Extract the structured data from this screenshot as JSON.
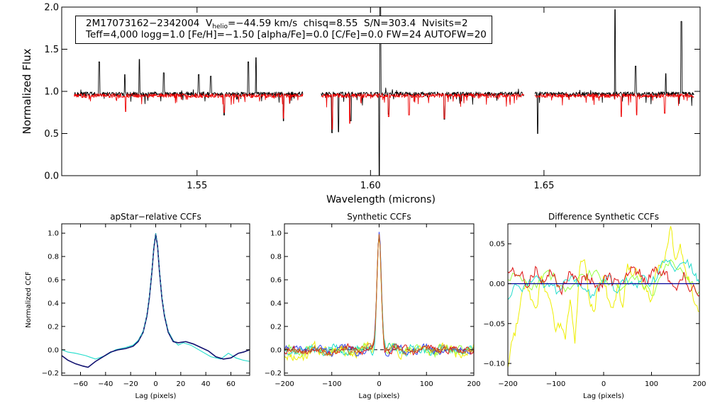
{
  "header": {
    "object_id": "2M17073162−2342004",
    "vhelio_label_main": "V",
    "vhelio_label_sub": "helio",
    "vhelio_value": "=−44.59 km/s",
    "chisq": "chisq=8.55",
    "snr": "S/N=303.4",
    "nvisits": "Nvisits=2",
    "params_line": "Teff=4,000 logg=1.0 [Fe/H]=−1.50 [alpha/Fe]=0.0 [C/Fe]=0.0 FW=24 AUTOFW=20"
  },
  "colors": {
    "observed": "#000000",
    "model": "#ee0000",
    "ccf_cyan": "#22ddcc",
    "ccf_navy": "#101070",
    "ccf_dash": "#3399aa",
    "ccf_yellow": "#eeee00",
    "ccf_green": "#99ff44",
    "ccf_red": "#dd1111",
    "ccf_orange": "#cc7722",
    "ccf_blue": "#3344ee",
    "zero_line": "#000099"
  },
  "chart_data": [
    {
      "id": "spectrum",
      "type": "line",
      "title": "",
      "xlabel": "Wavelength (microns)",
      "ylabel": "Normalized Flux",
      "xlim": [
        1.511,
        1.695
      ],
      "ylim": [
        0.0,
        2.0
      ],
      "xticks": [
        {
          "v": 1.55,
          "label": "1.55"
        },
        {
          "v": 1.6,
          "label": "1.60"
        },
        {
          "v": 1.65,
          "label": "1.65"
        }
      ],
      "yticks": [
        {
          "v": 0.0,
          "label": "0.0"
        },
        {
          "v": 0.5,
          "label": "0.5"
        },
        {
          "v": 1.0,
          "label": "1.0"
        },
        {
          "v": 1.5,
          "label": "1.5"
        },
        {
          "v": 2.0,
          "label": "2.0"
        }
      ],
      "chip_ranges": [
        [
          1.5146,
          1.5805
        ],
        [
          1.5858,
          1.6442
        ],
        [
          1.6474,
          1.6932
        ]
      ],
      "series": [
        {
          "name": "observed spectrum",
          "color_key": "observed",
          "continuum": 0.97,
          "features": [
            [
              1.5218,
              1.35
            ],
            [
              1.5292,
              1.2
            ],
            [
              1.5334,
              1.38
            ],
            [
              1.5404,
              1.22
            ],
            [
              1.5505,
              1.2
            ],
            [
              1.554,
              1.18
            ],
            [
              1.5648,
              1.35
            ],
            [
              1.567,
              1.4
            ],
            [
              1.5578,
              0.72
            ],
            [
              1.5749,
              0.65
            ],
            [
              1.5889,
              0.51
            ],
            [
              1.5908,
              0.52
            ],
            [
              1.5943,
              0.65
            ],
            [
              1.6026,
              0.0
            ],
            [
              1.6028,
              2.0
            ],
            [
              1.6052,
              0.73
            ],
            [
              1.6213,
              0.67
            ],
            [
              1.6482,
              0.5
            ],
            [
              1.6705,
              1.97
            ],
            [
              1.6764,
              1.3
            ],
            [
              1.6851,
              1.21
            ],
            [
              1.6896,
              1.83
            ]
          ]
        },
        {
          "name": "model fit",
          "color_key": "model",
          "continuum": 0.95,
          "features": [
            [
              1.5294,
              0.76
            ],
            [
              1.5578,
              0.75
            ],
            [
              1.5749,
              0.68
            ],
            [
              1.589,
              0.55
            ],
            [
              1.594,
              0.62
            ],
            [
              1.6052,
              0.7
            ],
            [
              1.6111,
              0.72
            ],
            [
              1.6213,
              0.68
            ],
            [
              1.6723,
              0.7
            ],
            [
              1.6767,
              0.72
            ],
            [
              1.6848,
              0.74
            ]
          ]
        }
      ]
    },
    {
      "id": "ccf_apstar",
      "type": "line",
      "title": "apStar−relative CCFs",
      "xlabel": "Lag (pixels)",
      "ylabel": "Normalized CCF",
      "xlim": [
        -75,
        75
      ],
      "ylim": [
        -0.22,
        1.08
      ],
      "xticks": [
        {
          "v": -60,
          "label": "−60"
        },
        {
          "v": -40,
          "label": "−40"
        },
        {
          "v": -20,
          "label": "−20"
        },
        {
          "v": 0,
          "label": "0"
        },
        {
          "v": 20,
          "label": "20"
        },
        {
          "v": 40,
          "label": "40"
        },
        {
          "v": 60,
          "label": "60"
        }
      ],
      "yticks": [
        {
          "v": -0.2,
          "label": "−0.2"
        },
        {
          "v": 0.0,
          "label": "0.0"
        },
        {
          "v": 0.2,
          "label": "0.2"
        },
        {
          "v": 0.4,
          "label": "0.4"
        },
        {
          "v": 0.6,
          "label": "0.6"
        },
        {
          "v": 0.8,
          "label": "0.8"
        },
        {
          "v": 1.0,
          "label": "1.0"
        }
      ],
      "series": [
        {
          "name": "visit 1",
          "color_key": "ccf_cyan",
          "dash": false,
          "x": [
            -75,
            -70,
            -64,
            -56,
            -48,
            -40,
            -32,
            -24,
            -18,
            -14,
            -10,
            -7,
            -5,
            -3,
            -1.5,
            0,
            1.5,
            3,
            5,
            7,
            10,
            14,
            18,
            22,
            28,
            36,
            44,
            52,
            58,
            64,
            70,
            75
          ],
          "y": [
            0.0,
            -0.02,
            -0.03,
            -0.05,
            -0.08,
            -0.05,
            0.0,
            0.02,
            0.04,
            0.08,
            0.16,
            0.3,
            0.46,
            0.68,
            0.88,
            1.0,
            0.9,
            0.68,
            0.45,
            0.3,
            0.16,
            0.08,
            0.04,
            0.06,
            0.04,
            -0.01,
            -0.06,
            -0.08,
            -0.03,
            -0.07,
            -0.09,
            -0.1
          ]
        },
        {
          "name": "visit 2",
          "color_key": "ccf_navy",
          "dash": false,
          "x": [
            -75,
            -70,
            -64,
            -58,
            -54,
            -48,
            -42,
            -36,
            -30,
            -24,
            -18,
            -14,
            -10,
            -7,
            -5,
            -3,
            -1.5,
            0,
            1.5,
            3,
            5,
            7,
            10,
            14,
            18,
            24,
            30,
            36,
            42,
            48,
            54,
            60,
            66,
            70,
            75
          ],
          "y": [
            -0.05,
            -0.09,
            -0.12,
            -0.14,
            -0.15,
            -0.1,
            -0.06,
            -0.02,
            0.0,
            0.01,
            0.03,
            0.07,
            0.15,
            0.29,
            0.45,
            0.67,
            0.87,
            0.99,
            0.89,
            0.67,
            0.44,
            0.29,
            0.15,
            0.07,
            0.06,
            0.07,
            0.05,
            0.02,
            -0.01,
            -0.06,
            -0.08,
            -0.07,
            -0.03,
            -0.02,
            0.0
          ]
        },
        {
          "name": "combined",
          "color_key": "ccf_dash",
          "dash": true,
          "x": [
            -14,
            -10,
            -7,
            -5,
            -3,
            -1.5,
            0,
            1.5,
            3,
            5,
            7,
            10,
            14
          ],
          "y": [
            0.08,
            0.15,
            0.3,
            0.46,
            0.68,
            0.88,
            1.0,
            0.9,
            0.68,
            0.45,
            0.3,
            0.16,
            0.08
          ]
        }
      ]
    },
    {
      "id": "ccf_synthetic",
      "type": "line",
      "title": "Synthetic CCFs",
      "xlabel": "Lag (pixels)",
      "ylabel": "",
      "xlim": [
        -200,
        200
      ],
      "ylim": [
        -0.22,
        1.08
      ],
      "xticks": [
        {
          "v": -200,
          "label": "−200"
        },
        {
          "v": -100,
          "label": "−100"
        },
        {
          "v": 0,
          "label": "0"
        },
        {
          "v": 100,
          "label": "100"
        },
        {
          "v": 200,
          "label": "200"
        }
      ],
      "yticks": [
        {
          "v": -0.2,
          "label": "−0.2"
        },
        {
          "v": 0.0,
          "label": "0.0"
        },
        {
          "v": 0.2,
          "label": "0.2"
        },
        {
          "v": 0.4,
          "label": "0.4"
        },
        {
          "v": 0.6,
          "label": "0.6"
        },
        {
          "v": 0.8,
          "label": "0.8"
        },
        {
          "v": 1.0,
          "label": "1.0"
        }
      ],
      "zero_line": {
        "y": 0.0,
        "style": "dashed",
        "color_key": "observed"
      },
      "series": [
        {
          "name": "yellow",
          "color_key": "ccf_yellow",
          "seed": 11,
          "amp": 0.05
        },
        {
          "name": "green",
          "color_key": "ccf_green",
          "seed": 23,
          "amp": 0.04
        },
        {
          "name": "cyan",
          "color_key": "ccf_cyan",
          "seed": 37,
          "amp": 0.035
        },
        {
          "name": "blue",
          "color_key": "ccf_blue",
          "seed": 41,
          "amp": 0.03
        },
        {
          "name": "red",
          "color_key": "ccf_red",
          "seed": 53,
          "amp": 0.03
        },
        {
          "name": "orange",
          "color_key": "ccf_orange",
          "seed": 67,
          "amp": 0.028
        }
      ],
      "peak": {
        "center": 0,
        "height": 1.0,
        "width": 4.5
      }
    },
    {
      "id": "ccf_difference",
      "type": "line",
      "title": "Difference Synthetic CCFs",
      "xlabel": "Lag (pixels)",
      "ylabel": "",
      "xlim": [
        -200,
        200
      ],
      "ylim": [
        -0.115,
        0.075
      ],
      "xticks": [
        {
          "v": -200,
          "label": "−200"
        },
        {
          "v": -100,
          "label": "−100"
        },
        {
          "v": 0,
          "label": "0"
        },
        {
          "v": 100,
          "label": "100"
        },
        {
          "v": 200,
          "label": "200"
        }
      ],
      "yticks": [
        {
          "v": -0.1,
          "label": "−0.10"
        },
        {
          "v": -0.05,
          "label": "−0.05"
        },
        {
          "v": 0.0,
          "label": "0.00"
        },
        {
          "v": 0.05,
          "label": "0.05"
        }
      ],
      "zero_line": {
        "y": 0.0,
        "style": "solid",
        "color_key": "zero_line"
      },
      "series": [
        {
          "name": "yellow",
          "color_key": "ccf_yellow",
          "x": [
            -200,
            -190,
            -180,
            -170,
            -160,
            -150,
            -140,
            -130,
            -120,
            -110,
            -100,
            -90,
            -80,
            -70,
            -60,
            -50,
            -40,
            -30,
            -20,
            -10,
            0,
            10,
            20,
            30,
            40,
            50,
            60,
            70,
            80,
            90,
            100,
            110,
            120,
            130,
            140,
            150,
            160,
            170,
            180,
            190,
            200
          ],
          "y": [
            -0.105,
            -0.07,
            -0.05,
            -0.01,
            0.0,
            -0.02,
            -0.03,
            0.01,
            -0.01,
            -0.025,
            -0.06,
            -0.05,
            -0.07,
            -0.02,
            -0.075,
            0.02,
            0.03,
            -0.02,
            -0.035,
            0.0,
            0.01,
            -0.02,
            -0.03,
            0.0,
            -0.03,
            0.025,
            0.01,
            0.015,
            0.0,
            -0.01,
            -0.02,
            0.02,
            0.02,
            0.04,
            0.072,
            0.03,
            0.05,
            0.02,
            0.0,
            -0.025,
            -0.035
          ]
        },
        {
          "name": "green",
          "color_key": "ccf_green",
          "x": [
            -200,
            -180,
            -160,
            -140,
            -120,
            -100,
            -80,
            -60,
            -40,
            -20,
            0,
            20,
            40,
            60,
            80,
            100,
            120,
            140,
            160,
            180,
            200
          ],
          "y": [
            0.005,
            0.01,
            0.0,
            -0.005,
            0.015,
            0.005,
            -0.01,
            0.0,
            0.01,
            0.015,
            0.005,
            0.0,
            -0.005,
            0.01,
            0.0,
            -0.015,
            0.01,
            0.03,
            0.02,
            0.0,
            -0.01
          ]
        },
        {
          "name": "cyan",
          "color_key": "ccf_cyan",
          "x": [
            -200,
            -185,
            -170,
            -155,
            -140,
            -125,
            -110,
            -95,
            -80,
            -65,
            -50,
            -35,
            -20,
            -5,
            10,
            25,
            40,
            55,
            70,
            85,
            100,
            115,
            130,
            145,
            160,
            175,
            190,
            200
          ],
          "y": [
            -0.02,
            0.0,
            -0.01,
            0.005,
            0.01,
            -0.005,
            0.0,
            -0.01,
            0.005,
            0.01,
            0.0,
            -0.01,
            -0.015,
            0.0,
            0.01,
            -0.01,
            0.005,
            0.0,
            -0.005,
            0.01,
            0.0,
            0.015,
            0.03,
            0.02,
            0.025,
            0.03,
            0.01,
            0.0
          ]
        },
        {
          "name": "red",
          "color_key": "ccf_red",
          "x": [
            -200,
            -190,
            -180,
            -170,
            -160,
            -150,
            -140,
            -130,
            -120,
            -110,
            -100,
            -90,
            -80,
            -70,
            -60,
            -50,
            -40,
            -30,
            -20,
            -10,
            0,
            10,
            20,
            30,
            40,
            50,
            60,
            70,
            80,
            90,
            100,
            110,
            120,
            130,
            140,
            150,
            160,
            170,
            180,
            190,
            200
          ],
          "y": [
            0.015,
            0.02,
            0.01,
            0.015,
            -0.005,
            0.01,
            0.02,
            0.0,
            0.005,
            0.015,
            0.005,
            -0.01,
            0.0,
            0.015,
            0.01,
            0.0,
            0.01,
            0.005,
            0.0,
            -0.01,
            0.005,
            0.01,
            0.0,
            0.005,
            0.0,
            0.01,
            0.02,
            0.015,
            0.01,
            0.0,
            0.015,
            0.02,
            0.01,
            0.015,
            0.0,
            -0.005,
            0.005,
            0.01,
            -0.01,
            -0.005,
            -0.015
          ]
        }
      ]
    }
  ]
}
